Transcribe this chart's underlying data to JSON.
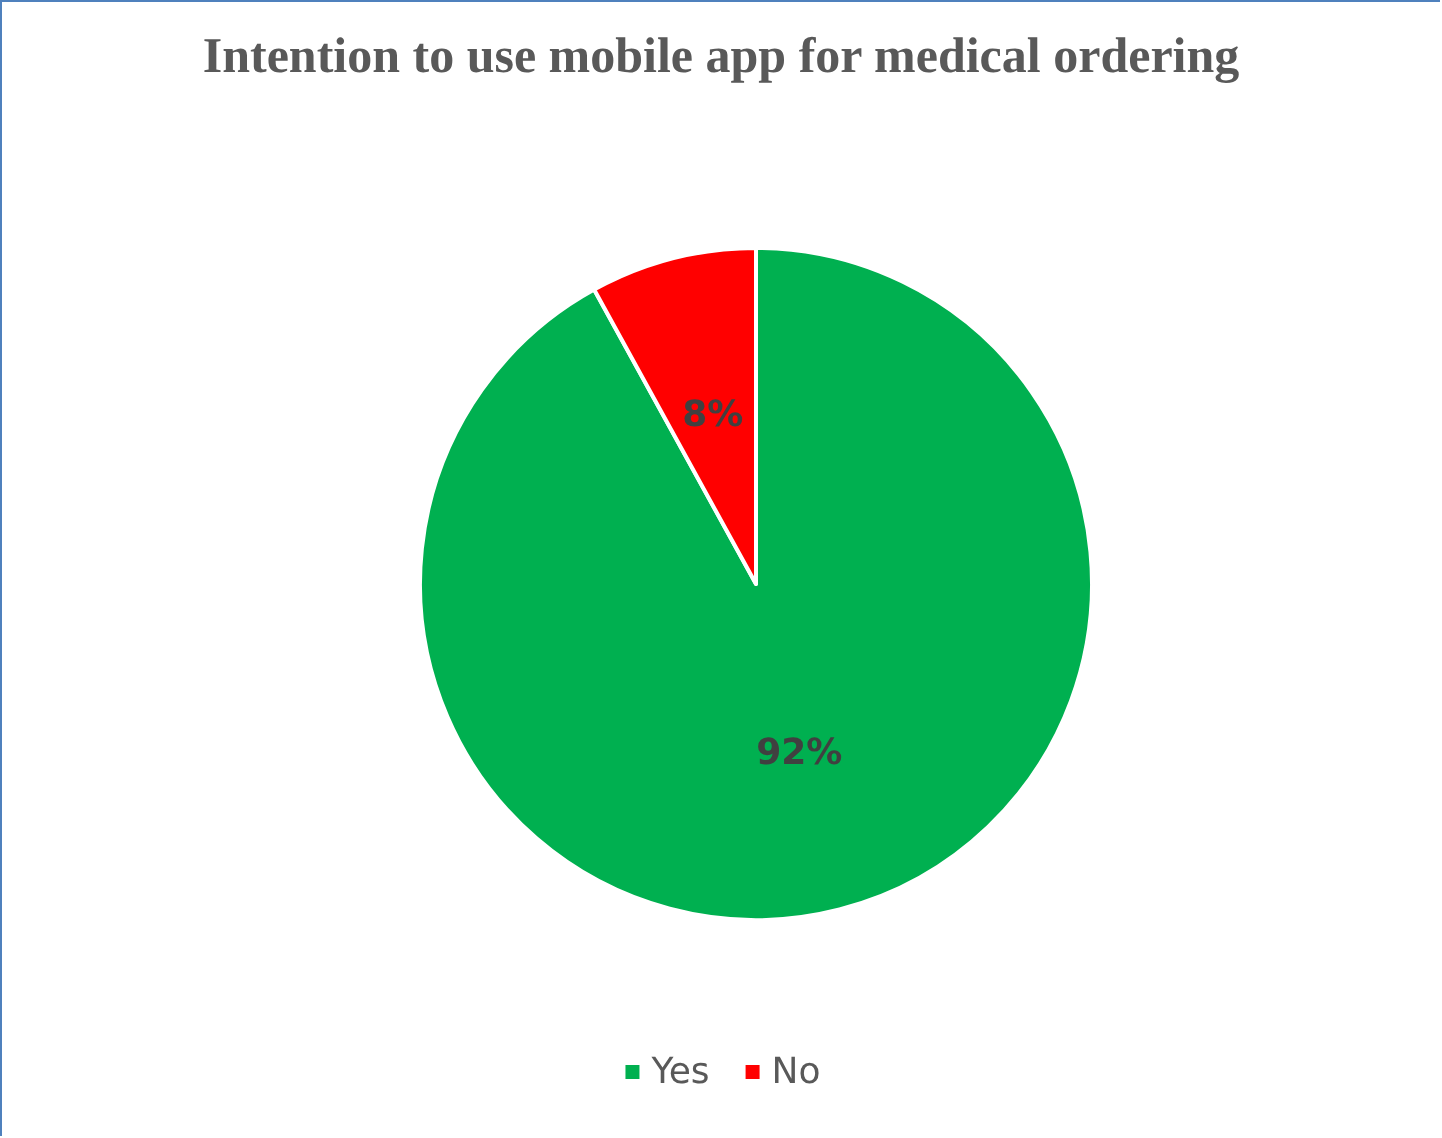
{
  "chart_data": {
    "type": "pie",
    "title": "Intention to use mobile app for medical ordering",
    "categories": [
      "Yes",
      "No"
    ],
    "values": [
      92,
      8
    ],
    "colors": [
      "#00b050",
      "#ff0000"
    ],
    "value_labels": [
      "92%",
      "8%"
    ],
    "legend": "bottom"
  }
}
